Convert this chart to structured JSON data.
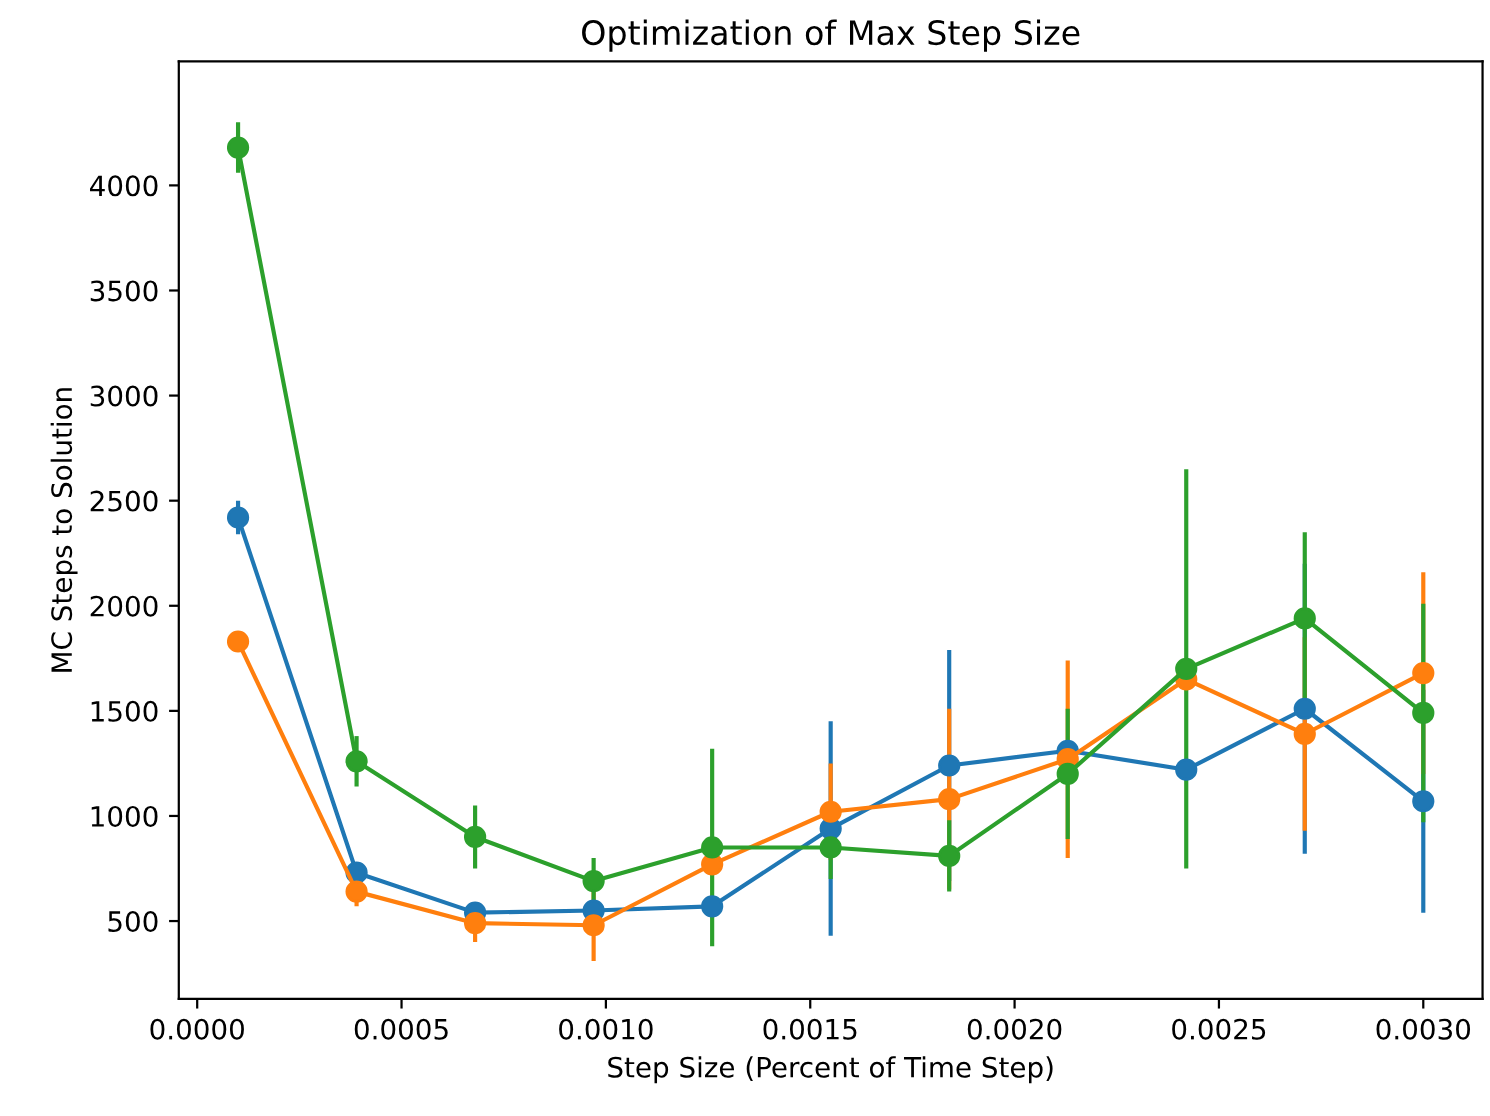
{
  "chart_data": {
    "type": "line",
    "title": "Optimization of Max Step Size",
    "xlabel": "Step Size (Percent of Time Step)",
    "ylabel": "MC Steps to Solution",
    "x": [
      0.0001,
      0.00039,
      0.00068,
      0.00097,
      0.00126,
      0.00155,
      0.00184,
      0.00213,
      0.00242,
      0.00271,
      0.003
    ],
    "marker": "circle",
    "line_style": "solid",
    "grid": false,
    "xlim": [
      -4.5e-05,
      0.003145
    ],
    "ylim": [
      130,
      4590
    ],
    "xticks": [
      {
        "value": 0,
        "label": "0.0000"
      },
      {
        "value": 0.0005,
        "label": "0.0005"
      },
      {
        "value": 0.001,
        "label": "0.0010"
      },
      {
        "value": 0.0015,
        "label": "0.0015"
      },
      {
        "value": 0.002,
        "label": "0.0020"
      },
      {
        "value": 0.0025,
        "label": "0.0025"
      },
      {
        "value": 0.003,
        "label": "0.0030"
      }
    ],
    "yticks": [
      500,
      1000,
      1500,
      2000,
      2500,
      3000,
      3500,
      4000
    ],
    "series": [
      {
        "color": "#1f77b4",
        "values": [
          2420,
          730,
          540,
          550,
          570,
          940,
          1240,
          1310,
          1220,
          1510,
          1070
        ],
        "errors": [
          80,
          50,
          30,
          30,
          30,
          510,
          550,
          null,
          null,
          690,
          530
        ]
      },
      {
        "color": "#ff7f0e",
        "values": [
          1830,
          640,
          490,
          480,
          770,
          1020,
          1080,
          1270,
          1650,
          1390,
          1680
        ],
        "errors": [
          20,
          70,
          90,
          170,
          null,
          230,
          430,
          470,
          null,
          460,
          480
        ]
      },
      {
        "color": "#2ca02c",
        "values": [
          4180,
          1260,
          900,
          690,
          850,
          850,
          810,
          1200,
          1700,
          1940,
          1490
        ],
        "errors": [
          120,
          120,
          150,
          110,
          470,
          150,
          170,
          310,
          950,
          410,
          520
        ]
      }
    ]
  }
}
